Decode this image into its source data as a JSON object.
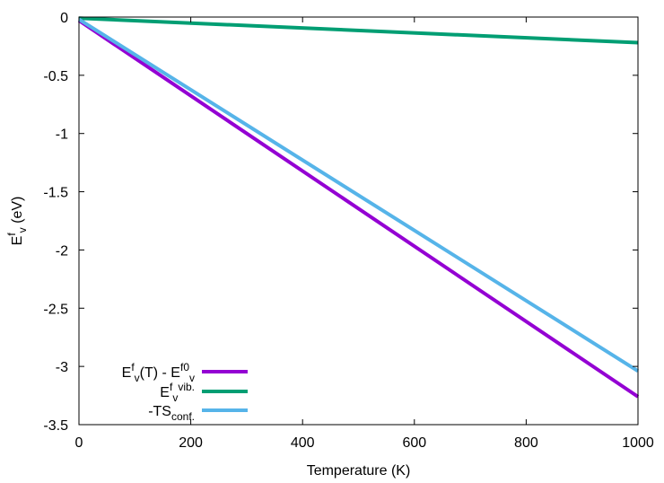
{
  "chart_data": {
    "type": "line",
    "title": "",
    "xlabel": "Temperature (K)",
    "ylabel": {
      "main": "E",
      "sup": "f",
      "sub": "v",
      "rest": " (eV)"
    },
    "xlim": [
      0,
      1000
    ],
    "ylim": [
      -3.5,
      0
    ],
    "xticks": [
      0,
      200,
      400,
      600,
      800,
      1000
    ],
    "xtick_labels": [
      "0",
      "200",
      "400",
      "600",
      "800",
      "1000"
    ],
    "yticks": [
      0,
      -0.5,
      -1,
      -1.5,
      -2,
      -2.5,
      -3,
      -3.5
    ],
    "ytick_labels": [
      "0",
      "-0.5",
      "-1",
      "-1.5",
      "-2",
      "-2.5",
      "-3",
      "-3.5"
    ],
    "grid": false,
    "legend_position": "bottom-left",
    "series": [
      {
        "label": [
          {
            "t": "E",
            "s": ""
          },
          {
            "t": "f",
            "s": "sup"
          },
          {
            "t": "v",
            "s": "sub"
          },
          {
            "t": "(T) - E",
            "s": ""
          },
          {
            "t": "f0",
            "s": "sup"
          },
          {
            "t": "v",
            "s": "sub"
          }
        ],
        "color": "#9400d3",
        "x": [
          0,
          1000
        ],
        "y": [
          -0.03,
          -3.26
        ]
      },
      {
        "label": [
          {
            "t": "E",
            "s": ""
          },
          {
            "t": "f",
            "s": "sup"
          },
          {
            "t": "v",
            "s": "sub"
          },
          {
            "t": "vib.",
            "s": "sup"
          }
        ],
        "color": "#009e73",
        "x": [
          0,
          1000
        ],
        "y": [
          -0.01,
          -0.22
        ]
      },
      {
        "label": [
          {
            "t": "-TS",
            "s": ""
          },
          {
            "t": "conf.",
            "s": "sub"
          }
        ],
        "color": "#56b4e9",
        "x": [
          0,
          1000
        ],
        "y": [
          -0.02,
          -3.04
        ]
      }
    ]
  }
}
